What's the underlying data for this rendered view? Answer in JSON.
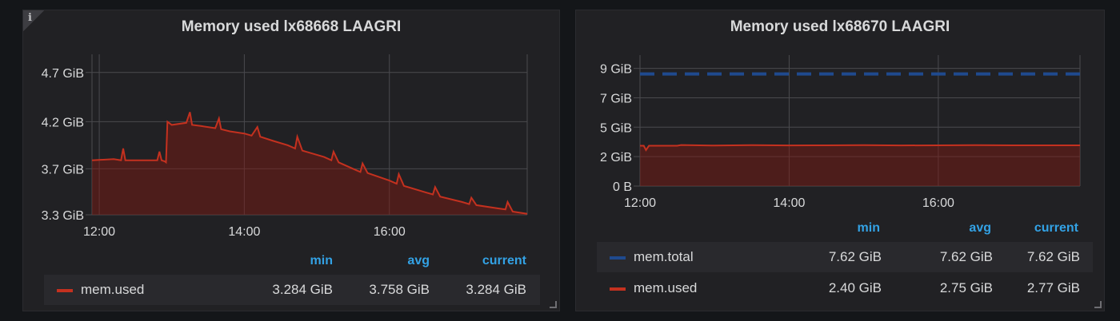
{
  "colors": {
    "mem_used": "#c4311f",
    "mem_total": "#1f4a8e",
    "grid": "#4a4a4e",
    "axis_text": "#d8d9da",
    "legend_header": "#33a2e5"
  },
  "chart_data": [
    {
      "type": "area",
      "title": "Memory used lx68668 LAAGRI",
      "x_ticks": [
        "12:00",
        "14:00",
        "16:00"
      ],
      "y_ticks": [
        "3.3 GiB",
        "3.7 GiB",
        "4.2 GiB",
        "4.7 GiB"
      ],
      "ylim": [
        3.3,
        4.8
      ],
      "xlim_hours": [
        11.9,
        17.9
      ],
      "series": [
        {
          "name": "mem.used",
          "x": [
            11.9,
            12.2,
            12.3,
            12.33,
            12.36,
            12.6,
            12.8,
            12.83,
            12.86,
            12.9,
            12.92,
            12.94,
            13.0,
            13.2,
            13.25,
            13.28,
            13.4,
            13.6,
            13.65,
            13.68,
            13.8,
            14.0,
            14.1,
            14.18,
            14.22,
            14.4,
            14.6,
            14.7,
            14.73,
            14.8,
            15.1,
            15.2,
            15.23,
            15.3,
            15.5,
            15.6,
            15.63,
            15.7,
            16.0,
            16.1,
            16.13,
            16.2,
            16.5,
            16.6,
            16.63,
            16.7,
            17.0,
            17.1,
            17.13,
            17.2,
            17.5,
            17.6,
            17.63,
            17.7,
            17.9
          ],
          "values": [
            3.81,
            3.82,
            3.81,
            3.92,
            3.81,
            3.81,
            3.81,
            3.89,
            3.81,
            3.8,
            3.79,
            4.17,
            4.14,
            4.16,
            4.26,
            4.14,
            4.13,
            4.11,
            4.2,
            4.1,
            4.08,
            4.06,
            4.04,
            4.12,
            4.03,
            3.99,
            3.95,
            3.92,
            4.03,
            3.9,
            3.84,
            3.81,
            3.89,
            3.79,
            3.73,
            3.7,
            3.78,
            3.69,
            3.62,
            3.59,
            3.68,
            3.57,
            3.51,
            3.49,
            3.56,
            3.47,
            3.42,
            3.4,
            3.46,
            3.39,
            3.36,
            3.35,
            3.42,
            3.33,
            3.31
          ]
        }
      ],
      "legend": {
        "headers": [
          "min",
          "avg",
          "current"
        ],
        "rows": [
          {
            "name": "mem.used",
            "min": "3.284 GiB",
            "avg": "3.758 GiB",
            "current": "3.284 GiB"
          }
        ]
      }
    },
    {
      "type": "area",
      "title": "Memory used lx68670 LAAGRI",
      "x_ticks": [
        "12:00",
        "14:00",
        "16:00"
      ],
      "y_ticks": [
        "0 B",
        "2 GiB",
        "5 GiB",
        "7 GiB",
        "9 GiB"
      ],
      "ylim": [
        0,
        8.9
      ],
      "xlim_hours": [
        12.0,
        17.9
      ],
      "series": [
        {
          "name": "mem.total",
          "x": [
            12.0,
            17.9
          ],
          "values": [
            7.62,
            7.62
          ]
        },
        {
          "name": "mem.used",
          "x": [
            12.0,
            12.05,
            12.08,
            12.12,
            12.5,
            12.55,
            13.0,
            13.5,
            14.0,
            14.5,
            15.0,
            15.5,
            16.0,
            16.5,
            17.0,
            17.5,
            17.9
          ],
          "values": [
            2.74,
            2.74,
            2.45,
            2.74,
            2.74,
            2.79,
            2.75,
            2.78,
            2.76,
            2.77,
            2.78,
            2.76,
            2.77,
            2.78,
            2.77,
            2.77,
            2.77
          ]
        }
      ],
      "legend": {
        "headers": [
          "min",
          "avg",
          "current"
        ],
        "rows": [
          {
            "name": "mem.total",
            "min": "7.62 GiB",
            "avg": "7.62 GiB",
            "current": "7.62 GiB"
          },
          {
            "name": "mem.used",
            "min": "2.40 GiB",
            "avg": "2.75 GiB",
            "current": "2.77 GiB"
          }
        ]
      }
    }
  ],
  "panels": {
    "left": {
      "info_icon": "i"
    }
  }
}
